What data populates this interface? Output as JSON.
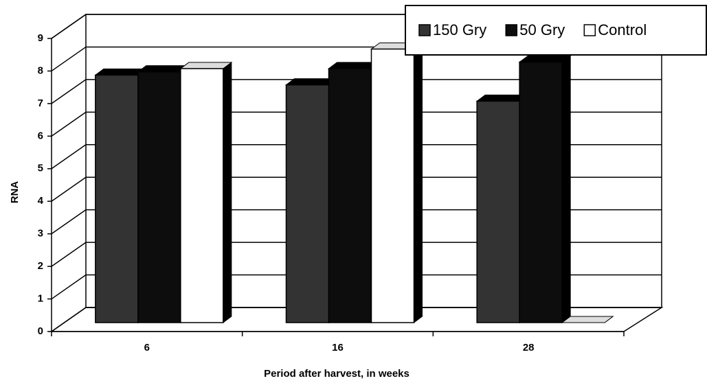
{
  "chart_data": {
    "type": "bar3d",
    "xlabel": "Period after harvest, in weeks",
    "ylabel": "RNA",
    "categories": [
      "6",
      "16",
      "28"
    ],
    "series": [
      {
        "name": "150 Gry",
        "color": "#333333",
        "values": [
          7.6,
          7.3,
          6.8
        ]
      },
      {
        "name": "50 Gry",
        "color": "#0d0d0d",
        "values": [
          7.7,
          7.8,
          8.0
        ]
      },
      {
        "name": "Control",
        "color": "#ffffff",
        "values": [
          7.8,
          8.4,
          0
        ]
      }
    ],
    "ylim": [
      0,
      9
    ],
    "yticks": [
      0,
      1,
      2,
      3,
      4,
      5,
      6,
      7,
      8,
      9
    ],
    "grid": true,
    "legend": "top-right"
  }
}
